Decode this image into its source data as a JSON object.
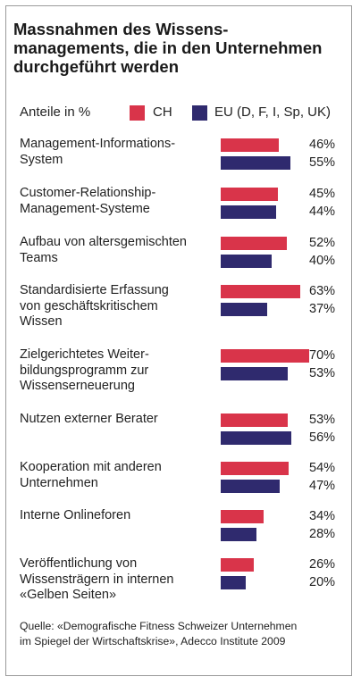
{
  "chart_data": {
    "type": "bar",
    "orientation": "horizontal",
    "title": "Massnahmen des Wissens-\nmanagements, die in den Unternehmen\ndurchgeführt werden",
    "unit_label": "Anteile in %",
    "categories": [
      "Management-Informations-\nSystem",
      "Customer-Relationship-\nManagement-Systeme",
      "Aufbau von altersgemischten\nTeams",
      "Standardisierte Erfassung\nvon geschäftskritischem\nWissen",
      "Zielgerichtetes Weiter-\nbildungsprogramm zur\nWissenserneuerung",
      "Nutzen externer Berater",
      "Kooperation mit anderen\nUnternehmen",
      "Interne Onlineforen",
      "Veröffentlichung von\nWissensträgern in internen\n«Gelben Seiten»"
    ],
    "series": [
      {
        "name": "CH",
        "color": "#d9344a",
        "values": [
          46,
          45,
          52,
          63,
          70,
          53,
          54,
          34,
          26
        ]
      },
      {
        "name": "EU (D, F, I, Sp, UK)",
        "color": "#2f2a6e",
        "values": [
          55,
          44,
          40,
          37,
          53,
          56,
          47,
          28,
          20
        ]
      }
    ],
    "value_suffix": "%",
    "xlim": [
      0,
      70
    ],
    "grid": false,
    "legend": "top",
    "source": "Quelle: «Demografische Fitness Schweizer Unternehmen\nim Spiegel der Wirtschaftskrise», Adecco Institute 2009"
  }
}
